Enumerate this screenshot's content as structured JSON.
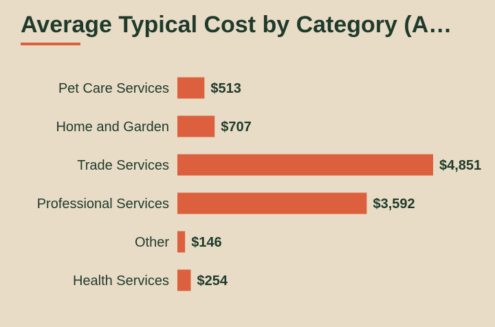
{
  "title": "Average Typical Cost by Category (A…",
  "colors": {
    "background": "#e8dcc6",
    "bar": "#dc603d",
    "text": "#1f3a2b"
  },
  "chart_data": {
    "type": "bar",
    "orientation": "horizontal",
    "title": "Average Typical Cost by Category (A…",
    "categories": [
      "Pet Care Services",
      "Home and Garden",
      "Trade Services",
      "Professional Services",
      "Other",
      "Health Services"
    ],
    "values": [
      513,
      707,
      4851,
      3592,
      146,
      254
    ],
    "value_labels": [
      "$513",
      "$707",
      "$4,851",
      "$3,592",
      "$146",
      "$254"
    ],
    "xlim": [
      0,
      4851
    ],
    "grid": false,
    "legend": "none"
  }
}
